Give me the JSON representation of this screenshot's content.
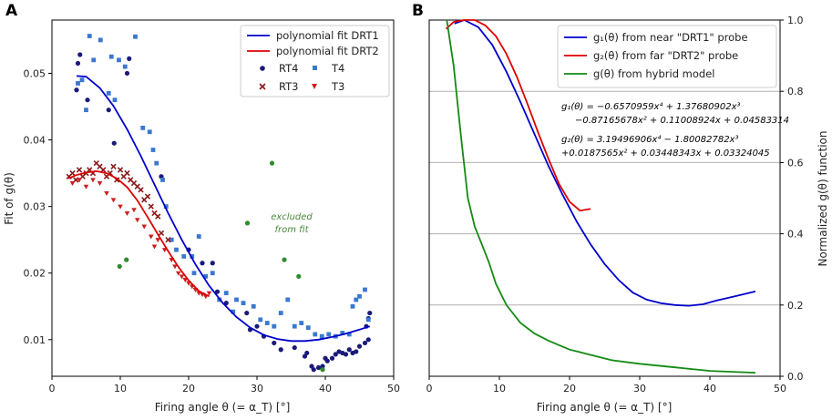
{
  "chart_data": [
    {
      "type": "scatter",
      "panel_label": "A",
      "xlabel": "Firing angle θ (=α_T) [°]",
      "ylabel": "Fit of g(θ)",
      "xlim": [
        0,
        50
      ],
      "ylim": [
        0.0045,
        0.058
      ],
      "xticks": [
        "0",
        "10",
        "20",
        "30",
        "40",
        "50"
      ],
      "yticks": [
        "0.01",
        "0.02",
        "0.03",
        "0.04",
        "0.05"
      ],
      "ytick_values": [
        0.01,
        0.02,
        0.03,
        0.04,
        0.05
      ],
      "xtick_values": [
        0,
        10,
        20,
        30,
        40,
        50
      ],
      "legend_title_lines": [
        "polynomial fit DRT1",
        "polynomial fit DRT2"
      ],
      "series": [
        {
          "name": "RT4",
          "marker": "circle",
          "color": "#1a1a7a",
          "points": [
            [
              3.8,
              0.0515
            ],
            [
              4.1,
              0.0528
            ],
            [
              3.6,
              0.0475
            ],
            [
              5.2,
              0.046
            ],
            [
              8.3,
              0.0445
            ],
            [
              9.1,
              0.0395
            ],
            [
              11.0,
              0.05
            ],
            [
              11.3,
              0.0522
            ],
            [
              16.0,
              0.0345
            ],
            [
              20.0,
              0.0235
            ],
            [
              22.0,
              0.0215
            ],
            [
              23.5,
              0.0215
            ],
            [
              24.2,
              0.0172
            ],
            [
              25.5,
              0.0155
            ],
            [
              28.5,
              0.014
            ],
            [
              29.0,
              0.0115
            ],
            [
              30.0,
              0.012
            ],
            [
              31.0,
              0.0105
            ],
            [
              32.5,
              0.0095
            ],
            [
              33.5,
              0.0085
            ],
            [
              35.5,
              0.0088
            ],
            [
              37.0,
              0.0075
            ],
            [
              37.3,
              0.008
            ],
            [
              38.0,
              0.006
            ],
            [
              38.3,
              0.0055
            ],
            [
              39.0,
              0.0058
            ],
            [
              39.6,
              0.006
            ],
            [
              40.0,
              0.0072
            ],
            [
              40.3,
              0.0068
            ],
            [
              41.0,
              0.0072
            ],
            [
              41.5,
              0.0078
            ],
            [
              42.0,
              0.0082
            ],
            [
              42.5,
              0.008
            ],
            [
              43.0,
              0.0078
            ],
            [
              43.5,
              0.0085
            ],
            [
              44.0,
              0.008
            ],
            [
              44.5,
              0.0082
            ],
            [
              45.0,
              0.009
            ],
            [
              45.8,
              0.0095
            ],
            [
              46.0,
              0.012
            ],
            [
              46.3,
              0.0132
            ],
            [
              46.5,
              0.014
            ],
            [
              46.3,
              0.01
            ]
          ]
        },
        {
          "name": "T4",
          "marker": "square",
          "color": "#3a78d0",
          "points": [
            [
              4.4,
              0.049
            ],
            [
              5.5,
              0.0556
            ],
            [
              6.1,
              0.052
            ],
            [
              7.1,
              0.055
            ],
            [
              8.7,
              0.0525
            ],
            [
              9.8,
              0.052
            ],
            [
              10.7,
              0.051
            ],
            [
              12.2,
              0.0555
            ],
            [
              13.3,
              0.0418
            ],
            [
              14.3,
              0.0412
            ],
            [
              14.8,
              0.0385
            ],
            [
              15.3,
              0.0365
            ],
            [
              16.2,
              0.034
            ],
            [
              16.7,
              0.03
            ],
            [
              17.5,
              0.025
            ],
            [
              18.2,
              0.0235
            ],
            [
              19.3,
              0.0225
            ],
            [
              20.5,
              0.0225
            ],
            [
              20.8,
              0.02
            ],
            [
              21.5,
              0.0255
            ],
            [
              22.5,
              0.0195
            ],
            [
              23.5,
              0.02
            ],
            [
              24.5,
              0.016
            ],
            [
              25.5,
              0.017
            ],
            [
              26.5,
              0.0142
            ],
            [
              27.0,
              0.016
            ],
            [
              28.0,
              0.0155
            ],
            [
              29.5,
              0.015
            ],
            [
              30.5,
              0.013
            ],
            [
              31.5,
              0.0125
            ],
            [
              32.5,
              0.012
            ],
            [
              33.5,
              0.014
            ],
            [
              34.5,
              0.016
            ],
            [
              35.5,
              0.012
            ],
            [
              36.5,
              0.0125
            ],
            [
              37.5,
              0.0118
            ],
            [
              38.5,
              0.0108
            ],
            [
              39.5,
              0.0105
            ],
            [
              40.5,
              0.0108
            ],
            [
              41.5,
              0.0105
            ],
            [
              42.5,
              0.011
            ],
            [
              43.5,
              0.0108
            ],
            [
              44.0,
              0.015
            ],
            [
              44.5,
              0.016
            ],
            [
              45.0,
              0.0165
            ],
            [
              45.8,
              0.0175
            ],
            [
              46.3,
              0.013
            ],
            [
              8.3,
              0.047
            ],
            [
              9.2,
              0.046
            ],
            [
              3.8,
              0.0485
            ],
            [
              5.0,
              0.0445
            ]
          ]
        },
        {
          "name": "RT3",
          "marker": "x",
          "color": "#8b1a1a",
          "points": [
            [
              2.5,
              0.0345
            ],
            [
              3.0,
              0.035
            ],
            [
              3.5,
              0.034
            ],
            [
              4.0,
              0.0355
            ],
            [
              4.5,
              0.0345
            ],
            [
              5.0,
              0.035
            ],
            [
              5.5,
              0.0355
            ],
            [
              6.0,
              0.035
            ],
            [
              6.5,
              0.0365
            ],
            [
              7.0,
              0.036
            ],
            [
              7.5,
              0.0355
            ],
            [
              8.0,
              0.0345
            ],
            [
              8.5,
              0.035
            ],
            [
              9.0,
              0.036
            ],
            [
              9.5,
              0.034
            ],
            [
              10.0,
              0.0355
            ],
            [
              10.5,
              0.0345
            ],
            [
              11.0,
              0.035
            ],
            [
              11.5,
              0.034
            ],
            [
              12.0,
              0.0335
            ],
            [
              12.5,
              0.033
            ],
            [
              13.0,
              0.0325
            ],
            [
              13.5,
              0.031
            ],
            [
              14.0,
              0.0315
            ],
            [
              14.5,
              0.03
            ],
            [
              15.0,
              0.029
            ],
            [
              15.5,
              0.0285
            ],
            [
              16.0,
              0.026
            ],
            [
              17.0,
              0.025
            ]
          ]
        },
        {
          "name": "T3",
          "marker": "triangle",
          "color": "#cc2020",
          "points": [
            [
              3.0,
              0.0335
            ],
            [
              4.0,
              0.034
            ],
            [
              5.0,
              0.033
            ],
            [
              6.0,
              0.034
            ],
            [
              7.0,
              0.0335
            ],
            [
              8.0,
              0.032
            ],
            [
              9.0,
              0.031
            ],
            [
              10.0,
              0.03
            ],
            [
              11.0,
              0.029
            ],
            [
              12.0,
              0.0295
            ],
            [
              12.5,
              0.028
            ],
            [
              13.5,
              0.027
            ],
            [
              14.5,
              0.0255
            ],
            [
              15.0,
              0.024
            ],
            [
              15.5,
              0.025
            ],
            [
              16.5,
              0.0235
            ],
            [
              17.5,
              0.022
            ],
            [
              18.0,
              0.021
            ],
            [
              18.5,
              0.02
            ],
            [
              19.0,
              0.0195
            ],
            [
              19.5,
              0.019
            ],
            [
              20.0,
              0.0185
            ],
            [
              20.5,
              0.018
            ],
            [
              21.0,
              0.0175
            ],
            [
              21.5,
              0.017
            ],
            [
              22.0,
              0.0168
            ],
            [
              22.5,
              0.0165
            ],
            [
              23.0,
              0.017
            ]
          ]
        },
        {
          "name": "excluded",
          "marker": "excluded",
          "color": "#2e8b2e",
          "points": [
            [
              9.9,
              0.021
            ],
            [
              10.9,
              0.022
            ],
            [
              28.6,
              0.0275
            ],
            [
              32.2,
              0.0365
            ],
            [
              34.0,
              0.022
            ],
            [
              36.1,
              0.0195
            ],
            [
              39.6,
              0.0055
            ]
          ]
        }
      ],
      "fits": [
        {
          "name": "polynomial fit DRT1",
          "color": "#0000cc",
          "x": [
            3.6,
            5,
            7,
            9,
            11,
            13,
            15,
            17,
            19,
            21,
            23,
            25,
            27,
            29,
            31,
            33,
            35,
            37,
            39,
            41,
            43,
            45,
            46.5
          ],
          "y": [
            0.0496,
            0.0495,
            0.0478,
            0.0451,
            0.0416,
            0.0376,
            0.0333,
            0.029,
            0.025,
            0.0213,
            0.0181,
            0.0155,
            0.0134,
            0.0118,
            0.0107,
            0.0101,
            0.0098,
            0.0098,
            0.01,
            0.0104,
            0.0109,
            0.0115,
            0.012
          ]
        },
        {
          "name": "polynomial fit DRT2",
          "color": "#dd0000",
          "x": [
            2.4,
            3.5,
            5,
            6.5,
            8,
            9.5,
            11,
            12.5,
            14,
            15.5,
            17,
            18.5,
            20,
            21.5,
            23
          ],
          "y": [
            0.0342,
            0.0347,
            0.0351,
            0.0353,
            0.035,
            0.0342,
            0.0329,
            0.0309,
            0.0284,
            0.0258,
            0.0233,
            0.0209,
            0.0189,
            0.0173,
            0.0165
          ]
        }
      ],
      "annotation": [
        "excluded",
        "from fit"
      ]
    },
    {
      "type": "line",
      "panel_label": "B",
      "xlabel": "Firing angle θ (=α_T) [°]",
      "ylabel": "Normalized g(θ) function",
      "xlim": [
        0,
        50
      ],
      "ylim": [
        0,
        1.0
      ],
      "xticks": [
        "0",
        "10",
        "20",
        "30",
        "40",
        "50"
      ],
      "yticks": [
        "0.0",
        "0.2",
        "0.4",
        "0.6",
        "0.8",
        "1.0"
      ],
      "xtick_values": [
        0,
        10,
        20,
        30,
        40,
        50
      ],
      "ytick_values": [
        0,
        0.2,
        0.4,
        0.6,
        0.8,
        1.0
      ],
      "grid": "horizontal",
      "series": [
        {
          "name": "g1(θ) from near \"DRT1\" probe",
          "color": "#0000cc",
          "x": [
            3.6,
            5,
            7,
            9,
            11,
            13,
            15,
            17,
            19,
            21,
            23,
            25,
            27,
            29,
            31,
            33,
            35,
            37,
            39,
            41,
            43,
            46.5
          ],
          "y": [
            0.99,
            1.0,
            0.98,
            0.93,
            0.855,
            0.77,
            0.68,
            0.59,
            0.51,
            0.435,
            0.37,
            0.315,
            0.27,
            0.235,
            0.215,
            0.205,
            0.2,
            0.198,
            0.202,
            0.213,
            0.222,
            0.238
          ]
        },
        {
          "name": "g2(θ) from far \"DRT2\" probe",
          "color": "#dd0000",
          "x": [
            2.4,
            3.5,
            5,
            6.5,
            8,
            9.5,
            11,
            12.5,
            14,
            15.5,
            17,
            18.5,
            20,
            21.5,
            23
          ],
          "y": [
            0.975,
            0.995,
            1.0,
            1.0,
            0.985,
            0.955,
            0.905,
            0.84,
            0.765,
            0.685,
            0.61,
            0.54,
            0.49,
            0.465,
            0.47
          ]
        },
        {
          "name": "g(θ) from hybrid model",
          "color": "#138a13",
          "x": [
            2.5,
            3.5,
            4.5,
            5.5,
            6.5,
            7.5,
            8.5,
            9.5,
            11,
            13,
            15,
            17,
            20,
            23,
            26,
            30,
            35,
            40,
            46.5
          ],
          "y": [
            1.0,
            0.87,
            0.68,
            0.5,
            0.42,
            0.37,
            0.32,
            0.26,
            0.2,
            0.15,
            0.12,
            0.1,
            0.075,
            0.06,
            0.045,
            0.035,
            0.025,
            0.015,
            0.01
          ]
        }
      ],
      "equations": [
        "g₁(θ) = −0.6570959x⁴ + 1.37680902x³",
        "−0.87165678x² + 0.11008924x + 0.04583314",
        "g₂(θ) = 3.19496906x⁴ − 1.80082782x³",
        "+0.0187565x² + 0.03448343x + 0.03324045"
      ]
    }
  ],
  "legend_a": {
    "fit1": "polynomial fit DRT1",
    "fit2": "polynomial fit DRT2",
    "rt4": "RT4",
    "t4": "T4",
    "rt3": "RT3",
    "t3": "T3"
  },
  "legend_b": {
    "g1": "g₁(θ) from near \"DRT1\" probe",
    "g2": "g₂(θ) from far \"DRT2\" probe",
    "g": "g(θ) from hybrid model"
  },
  "labels": {
    "panel_a": "A",
    "panel_b": "B",
    "xlabel_a": "Firing angle θ (= α_T) [°]",
    "xlabel_b": "Firing angle θ (= α_T) [°]",
    "ylabel_a": "Fit of g(θ)",
    "ylabel_b": "Normalized g(θ) function",
    "note1": "excluded",
    "note2": "from fit"
  }
}
